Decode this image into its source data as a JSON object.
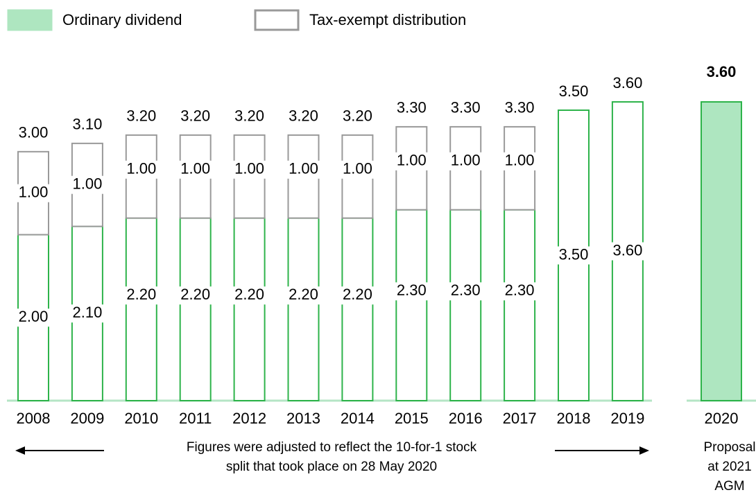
{
  "chart_data": {
    "type": "bar",
    "stacked": true,
    "categories": [
      "2008",
      "2009",
      "2010",
      "2011",
      "2012",
      "2013",
      "2014",
      "2015",
      "2016",
      "2017",
      "2018",
      "2019",
      "2020"
    ],
    "series": [
      {
        "name": "Ordinary dividend",
        "color": "#2db34a",
        "fill_color": "#aee6c0",
        "values": [
          2.0,
          2.1,
          2.2,
          2.2,
          2.2,
          2.2,
          2.2,
          2.3,
          2.3,
          2.3,
          3.5,
          3.6,
          3.6
        ],
        "value_labels": [
          "2.00",
          "2.10",
          "2.20",
          "2.20",
          "2.20",
          "2.20",
          "2.20",
          "2.30",
          "2.30",
          "2.30",
          "3.50",
          "3.60",
          null
        ]
      },
      {
        "name": "Tax-exempt distribution",
        "color": "#999999",
        "values": [
          1.0,
          1.0,
          1.0,
          1.0,
          1.0,
          1.0,
          1.0,
          1.0,
          1.0,
          1.0,
          null,
          null,
          null
        ],
        "value_labels": [
          "1.00",
          "1.00",
          "1.00",
          "1.00",
          "1.00",
          "1.00",
          "1.00",
          "1.00",
          "1.00",
          "1.00",
          null,
          null,
          null
        ]
      }
    ],
    "total_labels": [
      "3.00",
      "3.10",
      "3.20",
      "3.20",
      "3.20",
      "3.20",
      "3.20",
      "3.30",
      "3.30",
      "3.30",
      "3.50",
      "3.60",
      "3.60"
    ],
    "filled": [
      false,
      false,
      false,
      false,
      false,
      false,
      false,
      false,
      false,
      false,
      false,
      false,
      true
    ],
    "ylim": [
      0,
      3.6
    ],
    "legend": "top-left",
    "annotations": {
      "adjustment": [
        "Figures were adjusted to reflect the 10-for-1 stock",
        "split that took place on 28 May 2020"
      ],
      "proposal": [
        "Proposal",
        "at 2021",
        "AGM"
      ]
    }
  }
}
